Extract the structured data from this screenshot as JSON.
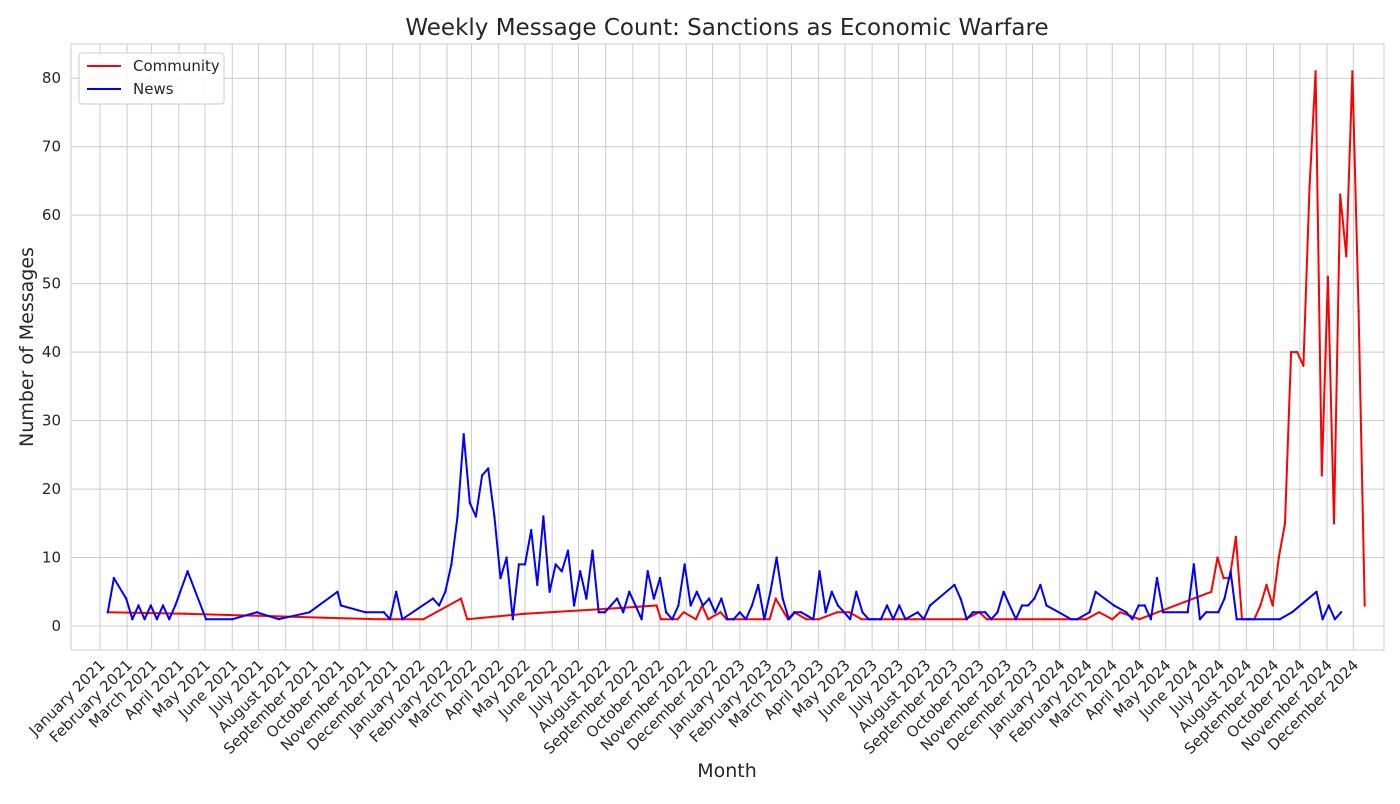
{
  "chart_data": {
    "type": "line",
    "title": "Weekly Message Count: Sanctions as Economic Warfare",
    "xlabel": "Month",
    "ylabel": "Number of Messages",
    "ylim": [
      -3.5,
      85
    ],
    "yticks": [
      0,
      10,
      20,
      30,
      40,
      50,
      60,
      70,
      80
    ],
    "xlim": [
      "2020-11-29",
      "2025-01-05"
    ],
    "grid": true,
    "legend_position": "top-left",
    "x_ticks": [
      {
        "date": "2021-01-01",
        "label": "January 2021"
      },
      {
        "date": "2021-02-01",
        "label": "February 2021"
      },
      {
        "date": "2021-03-01",
        "label": "March 2021"
      },
      {
        "date": "2021-04-01",
        "label": "April 2021"
      },
      {
        "date": "2021-05-01",
        "label": "May 2021"
      },
      {
        "date": "2021-06-01",
        "label": "June 2021"
      },
      {
        "date": "2021-07-01",
        "label": "July 2021"
      },
      {
        "date": "2021-08-01",
        "label": "August 2021"
      },
      {
        "date": "2021-09-01",
        "label": "September 2021"
      },
      {
        "date": "2021-10-01",
        "label": "October 2021"
      },
      {
        "date": "2021-11-01",
        "label": "November 2021"
      },
      {
        "date": "2021-12-01",
        "label": "December 2021"
      },
      {
        "date": "2022-01-01",
        "label": "January 2022"
      },
      {
        "date": "2022-02-01",
        "label": "February 2022"
      },
      {
        "date": "2022-03-01",
        "label": "March 2022"
      },
      {
        "date": "2022-04-01",
        "label": "April 2022"
      },
      {
        "date": "2022-05-01",
        "label": "May 2022"
      },
      {
        "date": "2022-06-01",
        "label": "June 2022"
      },
      {
        "date": "2022-07-01",
        "label": "July 2022"
      },
      {
        "date": "2022-08-01",
        "label": "August 2022"
      },
      {
        "date": "2022-09-01",
        "label": "September 2022"
      },
      {
        "date": "2022-10-01",
        "label": "October 2022"
      },
      {
        "date": "2022-11-01",
        "label": "November 2022"
      },
      {
        "date": "2022-12-01",
        "label": "December 2022"
      },
      {
        "date": "2023-01-01",
        "label": "January 2023"
      },
      {
        "date": "2023-02-01",
        "label": "February 2023"
      },
      {
        "date": "2023-03-01",
        "label": "March 2023"
      },
      {
        "date": "2023-04-01",
        "label": "April 2023"
      },
      {
        "date": "2023-05-01",
        "label": "May 2023"
      },
      {
        "date": "2023-06-01",
        "label": "June 2023"
      },
      {
        "date": "2023-07-01",
        "label": "July 2023"
      },
      {
        "date": "2023-08-01",
        "label": "August 2023"
      },
      {
        "date": "2023-09-01",
        "label": "September 2023"
      },
      {
        "date": "2023-10-01",
        "label": "October 2023"
      },
      {
        "date": "2023-11-01",
        "label": "November 2023"
      },
      {
        "date": "2023-12-01",
        "label": "December 2023"
      },
      {
        "date": "2024-01-01",
        "label": "January 2024"
      },
      {
        "date": "2024-02-01",
        "label": "February 2024"
      },
      {
        "date": "2024-03-01",
        "label": "March 2024"
      },
      {
        "date": "2024-04-01",
        "label": "April 2024"
      },
      {
        "date": "2024-05-01",
        "label": "May 2024"
      },
      {
        "date": "2024-06-01",
        "label": "June 2024"
      },
      {
        "date": "2024-07-01",
        "label": "July 2024"
      },
      {
        "date": "2024-08-01",
        "label": "August 2024"
      },
      {
        "date": "2024-09-01",
        "label": "September 2024"
      },
      {
        "date": "2024-10-01",
        "label": "October 2024"
      },
      {
        "date": "2024-11-01",
        "label": "November 2024"
      },
      {
        "date": "2024-12-01",
        "label": "December 2024"
      }
    ],
    "series": [
      {
        "name": "Community",
        "color": "#ff0000",
        "points": [
          [
            "2021-01-10",
            2
          ],
          [
            "2021-04-08",
            1.8
          ],
          [
            "2021-07-01",
            1.5
          ],
          [
            "2021-09-15",
            1.2
          ],
          [
            "2021-11-15",
            1
          ],
          [
            "2022-01-05",
            1
          ],
          [
            "2022-02-17",
            4
          ],
          [
            "2022-02-24",
            1
          ],
          [
            "2022-05-01",
            1.8
          ],
          [
            "2022-08-01",
            2.5
          ],
          [
            "2022-09-28",
            3
          ],
          [
            "2022-10-03",
            1
          ],
          [
            "2022-10-22",
            1
          ],
          [
            "2022-10-29",
            2
          ],
          [
            "2022-11-12",
            1
          ],
          [
            "2022-11-19",
            3
          ],
          [
            "2022-11-26",
            1
          ],
          [
            "2022-12-10",
            2
          ],
          [
            "2022-12-17",
            1
          ],
          [
            "2022-12-24",
            1
          ],
          [
            "2023-02-04",
            1
          ],
          [
            "2023-02-11",
            4
          ],
          [
            "2023-02-25",
            1
          ],
          [
            "2023-03-04",
            2
          ],
          [
            "2023-03-18",
            1
          ],
          [
            "2023-04-01",
            1
          ],
          [
            "2023-04-22",
            2
          ],
          [
            "2023-05-06",
            2
          ],
          [
            "2023-05-20",
            1
          ],
          [
            "2023-06-10",
            1
          ],
          [
            "2023-07-20",
            1
          ],
          [
            "2023-09-15",
            1
          ],
          [
            "2023-10-01",
            2
          ],
          [
            "2023-10-10",
            1
          ],
          [
            "2023-12-15",
            1
          ],
          [
            "2024-01-31",
            1
          ],
          [
            "2024-02-15",
            2
          ],
          [
            "2024-03-01",
            1
          ],
          [
            "2024-03-10",
            2
          ],
          [
            "2024-04-01",
            1
          ],
          [
            "2024-06-22",
            5
          ],
          [
            "2024-06-29",
            10
          ],
          [
            "2024-07-06",
            7
          ],
          [
            "2024-07-13",
            7
          ],
          [
            "2024-07-20",
            13
          ],
          [
            "2024-07-27",
            1
          ],
          [
            "2024-08-03",
            1
          ],
          [
            "2024-08-10",
            1
          ],
          [
            "2024-08-17",
            3
          ],
          [
            "2024-08-24",
            6
          ],
          [
            "2024-08-31",
            3
          ],
          [
            "2024-09-07",
            10
          ],
          [
            "2024-09-14",
            15
          ],
          [
            "2024-09-21",
            40
          ],
          [
            "2024-09-28",
            40
          ],
          [
            "2024-10-05",
            38
          ],
          [
            "2024-10-12",
            64
          ],
          [
            "2024-10-19",
            81
          ],
          [
            "2024-10-26",
            22
          ],
          [
            "2024-11-02",
            51
          ],
          [
            "2024-11-09",
            15
          ],
          [
            "2024-11-16",
            63
          ],
          [
            "2024-11-23",
            54
          ],
          [
            "2024-11-30",
            81
          ],
          [
            "2024-12-07",
            46
          ],
          [
            "2024-12-14",
            3
          ]
        ]
      },
      {
        "name": "News",
        "color": "#0000ff",
        "points": [
          [
            "2021-01-10",
            2
          ],
          [
            "2021-01-17",
            7
          ],
          [
            "2021-01-31",
            4
          ],
          [
            "2021-02-07",
            1
          ],
          [
            "2021-02-14",
            3
          ],
          [
            "2021-02-21",
            1
          ],
          [
            "2021-02-28",
            3
          ],
          [
            "2021-03-07",
            1
          ],
          [
            "2021-03-14",
            3
          ],
          [
            "2021-03-21",
            1
          ],
          [
            "2021-03-28",
            3
          ],
          [
            "2021-04-11",
            8
          ],
          [
            "2021-05-02",
            1
          ],
          [
            "2021-06-01",
            1
          ],
          [
            "2021-06-29",
            2
          ],
          [
            "2021-07-24",
            1
          ],
          [
            "2021-08-28",
            2
          ],
          [
            "2021-09-29",
            5
          ],
          [
            "2021-10-03",
            3
          ],
          [
            "2021-10-31",
            2
          ],
          [
            "2021-11-21",
            2
          ],
          [
            "2021-11-28",
            1
          ],
          [
            "2021-12-05",
            5
          ],
          [
            "2021-12-12",
            1
          ],
          [
            "2022-01-16",
            4
          ],
          [
            "2022-01-23",
            3
          ],
          [
            "2022-01-30",
            5
          ],
          [
            "2022-02-06",
            9
          ],
          [
            "2022-02-13",
            16
          ],
          [
            "2022-02-20",
            28
          ],
          [
            "2022-02-27",
            18
          ],
          [
            "2022-03-06",
            16
          ],
          [
            "2022-03-13",
            22
          ],
          [
            "2022-03-20",
            23
          ],
          [
            "2022-03-27",
            16
          ],
          [
            "2022-04-03",
            7
          ],
          [
            "2022-04-10",
            10
          ],
          [
            "2022-04-17",
            1
          ],
          [
            "2022-04-24",
            9
          ],
          [
            "2022-05-01",
            9
          ],
          [
            "2022-05-08",
            14
          ],
          [
            "2022-05-15",
            6
          ],
          [
            "2022-05-22",
            16
          ],
          [
            "2022-05-29",
            5
          ],
          [
            "2022-06-05",
            9
          ],
          [
            "2022-06-12",
            8
          ],
          [
            "2022-06-19",
            11
          ],
          [
            "2022-06-26",
            3
          ],
          [
            "2022-07-03",
            8
          ],
          [
            "2022-07-10",
            4
          ],
          [
            "2022-07-17",
            11
          ],
          [
            "2022-07-24",
            2
          ],
          [
            "2022-07-31",
            2
          ],
          [
            "2022-08-07",
            3
          ],
          [
            "2022-08-14",
            4
          ],
          [
            "2022-08-21",
            2
          ],
          [
            "2022-08-28",
            5
          ],
          [
            "2022-09-04",
            3
          ],
          [
            "2022-09-11",
            1
          ],
          [
            "2022-09-18",
            8
          ],
          [
            "2022-09-25",
            4
          ],
          [
            "2022-10-02",
            7
          ],
          [
            "2022-10-09",
            2
          ],
          [
            "2022-10-16",
            1
          ],
          [
            "2022-10-23",
            3
          ],
          [
            "2022-10-30",
            9
          ],
          [
            "2022-11-06",
            3
          ],
          [
            "2022-11-13",
            5
          ],
          [
            "2022-11-20",
            3
          ],
          [
            "2022-11-27",
            4
          ],
          [
            "2022-12-04",
            2
          ],
          [
            "2022-12-11",
            4
          ],
          [
            "2022-12-18",
            1
          ],
          [
            "2022-12-25",
            1
          ],
          [
            "2023-01-01",
            2
          ],
          [
            "2023-01-08",
            1
          ],
          [
            "2023-01-15",
            3
          ],
          [
            "2023-01-22",
            6
          ],
          [
            "2023-01-29",
            1
          ],
          [
            "2023-02-05",
            5
          ],
          [
            "2023-02-12",
            10
          ],
          [
            "2023-02-19",
            4
          ],
          [
            "2023-02-26",
            1
          ],
          [
            "2023-03-05",
            2
          ],
          [
            "2023-03-12",
            2
          ],
          [
            "2023-03-19",
            1.5
          ],
          [
            "2023-03-26",
            1
          ],
          [
            "2023-04-02",
            8
          ],
          [
            "2023-04-09",
            2
          ],
          [
            "2023-04-16",
            5
          ],
          [
            "2023-04-23",
            3
          ],
          [
            "2023-04-30",
            2
          ],
          [
            "2023-05-07",
            1
          ],
          [
            "2023-05-14",
            5
          ],
          [
            "2023-05-21",
            2
          ],
          [
            "2023-05-28",
            1
          ],
          [
            "2023-06-04",
            1
          ],
          [
            "2023-06-11",
            1
          ],
          [
            "2023-06-18",
            3
          ],
          [
            "2023-06-25",
            1
          ],
          [
            "2023-07-02",
            3
          ],
          [
            "2023-07-09",
            1
          ],
          [
            "2023-07-23",
            2
          ],
          [
            "2023-07-30",
            1
          ],
          [
            "2023-08-06",
            3
          ],
          [
            "2023-09-03",
            6
          ],
          [
            "2023-09-10",
            4
          ],
          [
            "2023-09-17",
            1
          ],
          [
            "2023-09-24",
            2
          ],
          [
            "2023-10-08",
            2
          ],
          [
            "2023-10-15",
            1
          ],
          [
            "2023-10-22",
            2
          ],
          [
            "2023-10-29",
            5
          ],
          [
            "2023-11-12",
            1
          ],
          [
            "2023-11-19",
            3
          ],
          [
            "2023-11-26",
            3
          ],
          [
            "2023-12-03",
            4
          ],
          [
            "2023-12-10",
            6
          ],
          [
            "2023-12-17",
            3
          ],
          [
            "2023-12-31",
            2
          ],
          [
            "2024-01-14",
            1
          ],
          [
            "2024-01-21",
            1
          ],
          [
            "2024-02-04",
            2
          ],
          [
            "2024-02-11",
            5
          ],
          [
            "2024-03-03",
            3
          ],
          [
            "2024-03-17",
            2
          ],
          [
            "2024-03-24",
            1
          ],
          [
            "2024-03-31",
            3
          ],
          [
            "2024-04-07",
            3
          ],
          [
            "2024-04-14",
            1
          ],
          [
            "2024-04-21",
            7
          ],
          [
            "2024-04-28",
            2
          ],
          [
            "2024-05-26",
            2
          ],
          [
            "2024-06-02",
            9
          ],
          [
            "2024-06-09",
            1
          ],
          [
            "2024-06-16",
            2
          ],
          [
            "2024-06-30",
            2
          ],
          [
            "2024-07-07",
            4
          ],
          [
            "2024-07-14",
            8
          ],
          [
            "2024-07-21",
            1
          ],
          [
            "2024-08-04",
            1
          ],
          [
            "2024-09-08",
            1
          ],
          [
            "2024-09-22",
            2
          ],
          [
            "2024-10-20",
            5
          ],
          [
            "2024-10-27",
            1
          ],
          [
            "2024-11-03",
            3
          ],
          [
            "2024-11-10",
            1
          ],
          [
            "2024-11-17",
            2
          ]
        ]
      }
    ]
  }
}
